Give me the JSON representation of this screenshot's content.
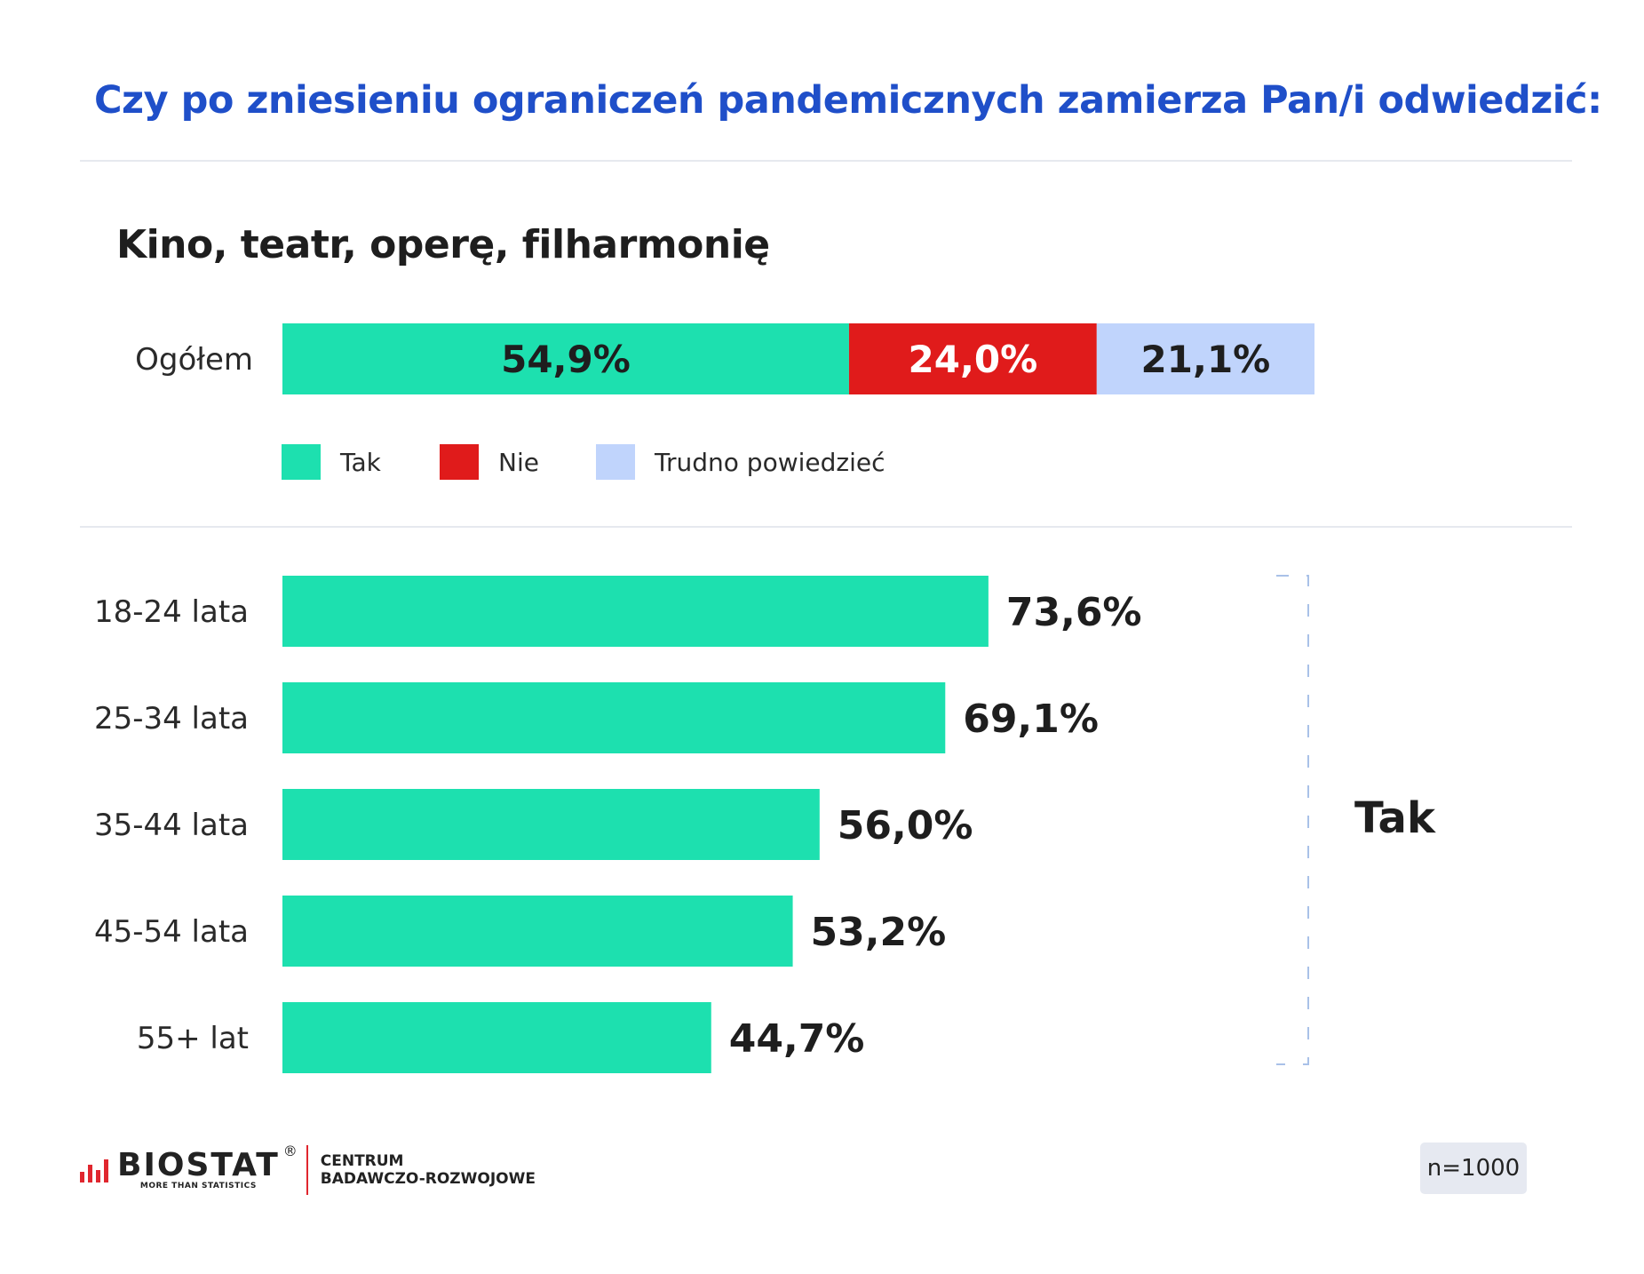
{
  "title": "Czy po zniesieniu ograniczeń pandemicznych zamierza Pan/i odwiedzić:",
  "subtitle": "Kino, teatr, operę, filharmonię",
  "legend": [
    {
      "label": "Tak",
      "color": "#1de0af"
    },
    {
      "label": "Nie",
      "color": "#e01b1b"
    },
    {
      "label": "Trudno powiedzieć",
      "color": "#c0d4fc"
    }
  ],
  "chart_data": [
    {
      "type": "bar",
      "stacked": true,
      "orientation": "horizontal",
      "categories": [
        "Ogółem"
      ],
      "series": [
        {
          "name": "Tak",
          "values": [
            54.9
          ],
          "label": "54,9%",
          "color": "#1de0af",
          "label_color": "#1e1e1e"
        },
        {
          "name": "Nie",
          "values": [
            24.0
          ],
          "label": "24,0%",
          "color": "#e01b1b",
          "label_color": "#ffffff"
        },
        {
          "name": "Trudno powiedzieć",
          "values": [
            21.1
          ],
          "label": "21,1%",
          "color": "#c0d4fc",
          "label_color": "#1e1e1e"
        }
      ],
      "xlim": [
        0,
        100
      ],
      "legend": "bottom"
    },
    {
      "type": "bar",
      "orientation": "horizontal",
      "categories": [
        "18-24 lata",
        "25-34 lata",
        "35-44 lata",
        "45-54 lata",
        "55+ lat"
      ],
      "values": [
        73.6,
        69.1,
        56.0,
        53.2,
        44.7
      ],
      "labels": [
        "73,6%",
        "69,1%",
        "56,0%",
        "53,2%",
        "44,7%"
      ],
      "bracket_label": "Tak",
      "color": "#1de0af",
      "xlim": [
        0,
        100
      ]
    }
  ],
  "footer": {
    "logo_word": "BIOSTAT",
    "logo_registered": "®",
    "logo_tagline": "MORE THAN STATISTICS",
    "logo_sub1": "CENTRUM",
    "logo_sub2": "BADAWCZO-ROZWOJOWE",
    "sample": "n=1000"
  }
}
